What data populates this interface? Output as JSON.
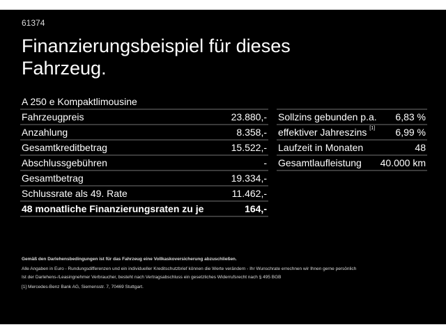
{
  "code": "61374",
  "title": "Finanzierungsbeispiel für dieses Fahrzeug.",
  "model": "A 250 e Kompaktlimousine",
  "left_rows": [
    {
      "label": "Fahrzeugpreis",
      "value": "23.880,-"
    },
    {
      "label": "Anzahlung",
      "value": "8.358,-"
    },
    {
      "label": "Gesamtkreditbetrag",
      "value": "15.522,-"
    },
    {
      "label": "Abschlussgebühren",
      "value": "-"
    },
    {
      "label": "Gesamtbetrag",
      "value": "19.334,-"
    },
    {
      "label": "Schlussrate als 49. Rate",
      "value": "11.462,-"
    },
    {
      "label": "48 monatliche Finanzierungsraten zu je",
      "value": "164,-"
    }
  ],
  "right_rows": [
    {
      "label": "Sollzins gebunden p.a.",
      "value": "6,83 %"
    },
    {
      "label": "effektiver Jahreszins",
      "sup": "[1]",
      "value": "6,99 %"
    },
    {
      "label": "Laufzeit in Monaten",
      "value": "48"
    },
    {
      "label": "Gesamtlaufleistung",
      "value": "40.000 km"
    }
  ],
  "footer": {
    "line1": "Gemäß den Darlehensbedingungen ist für das Fahrzeug eine Vollkaskoversicherung abzuschließen.",
    "line2": "Alle Angaben in Euro - Rundungsdifferenzen und ein individueller Kreditschutzbrief können die Werte verändern - Ihr Wunschrate errechnen wir Ihnen gerne persönlich",
    "line3": "Ist der Darlehens-/Leasingnehmer Verbraucher, besteht nach Vertragsabschluss ein gesetzliches Widerrufsrecht nach § 495 BGB",
    "line4": "[1] Mercedes-Benz Bank AG, Siemensstr. 7, 70469 Stuttgart."
  }
}
